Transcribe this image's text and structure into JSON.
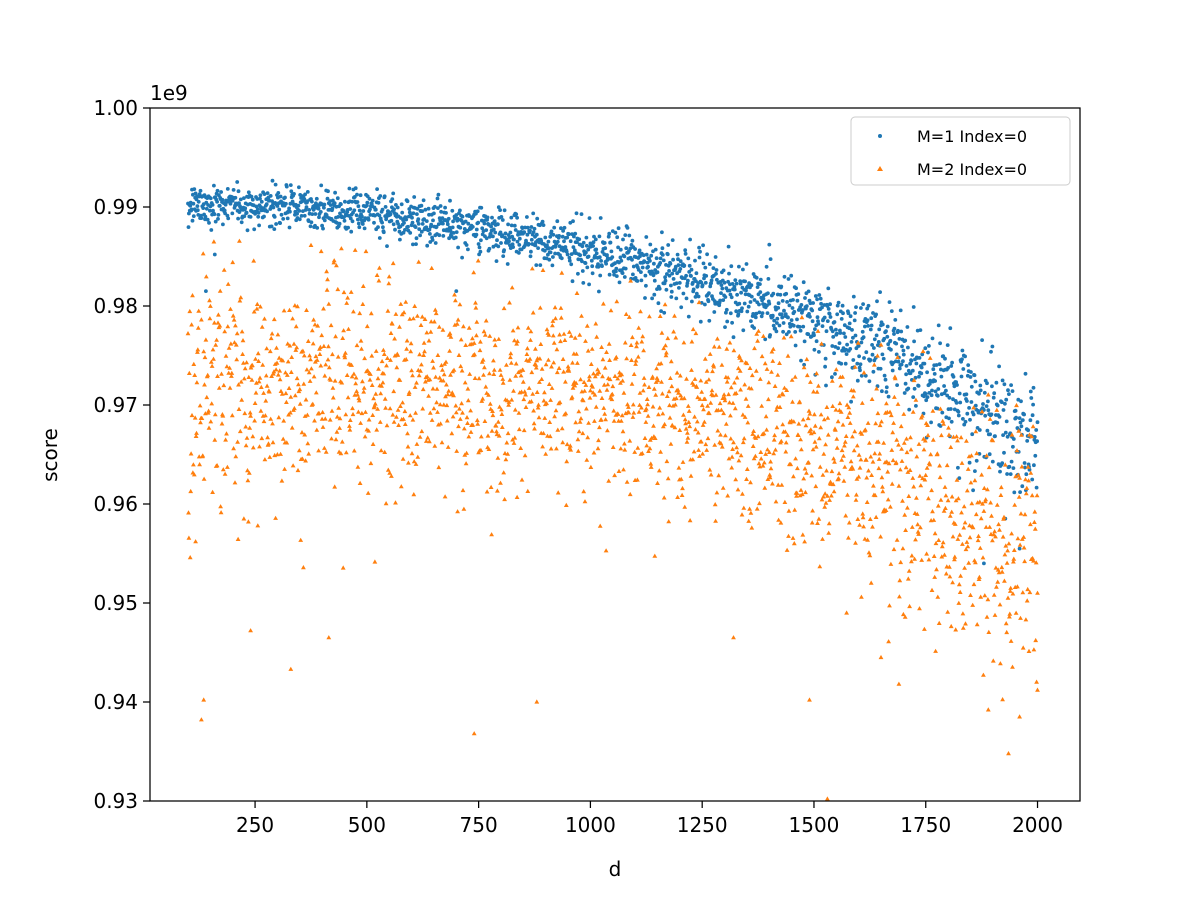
{
  "chart_data": {
    "type": "scatter",
    "title": "",
    "xlabel": "d",
    "ylabel": "score",
    "offset_text": "1e9",
    "xlim": [
      15,
      2095
    ],
    "ylim": [
      0.93,
      1.0
    ],
    "xticks": [
      250,
      500,
      750,
      1000,
      1250,
      1500,
      1750,
      2000
    ],
    "xtick_labels": [
      "250",
      "500",
      "750",
      "1000",
      "1250",
      "1500",
      "1750",
      "2000"
    ],
    "yticks": [
      0.93,
      0.94,
      0.95,
      0.96,
      0.97,
      0.98,
      0.99,
      1.0
    ],
    "ytick_labels": [
      "0.93",
      "0.94",
      "0.95",
      "0.96",
      "0.97",
      "0.98",
      "0.99",
      "1.00"
    ],
    "grid": false,
    "legend_position": "top-right",
    "series": [
      {
        "name": "M=1 Index=0",
        "marker": "circle",
        "color": "#1f77b4",
        "x_range": [
          100,
          2000
        ],
        "trend": [
          [
            100,
            0.99
          ],
          [
            300,
            0.9902
          ],
          [
            500,
            0.9893
          ],
          [
            750,
            0.9878
          ],
          [
            1000,
            0.9855
          ],
          [
            1250,
            0.9825
          ],
          [
            1500,
            0.9785
          ],
          [
            1750,
            0.9735
          ],
          [
            2000,
            0.9655
          ]
        ],
        "spread": [
          [
            100,
            0.0009
          ],
          [
            500,
            0.001
          ],
          [
            1000,
            0.0014
          ],
          [
            1500,
            0.0019
          ],
          [
            1750,
            0.0025
          ],
          [
            2000,
            0.0032
          ]
        ],
        "outliers": [
          [
            140,
            0.9815
          ],
          [
            160,
            0.9852
          ],
          [
            700,
            0.9815
          ],
          [
            1400,
            0.9862
          ],
          [
            1880,
            0.954
          ],
          [
            1960,
            0.9555
          ]
        ]
      },
      {
        "name": "M=2 Index=0",
        "marker": "triangle",
        "color": "#ff7f0e",
        "x_range": [
          100,
          2000
        ],
        "trend": [
          [
            100,
            0.971
          ],
          [
            300,
            0.9722
          ],
          [
            500,
            0.9725
          ],
          [
            750,
            0.9722
          ],
          [
            1000,
            0.9712
          ],
          [
            1250,
            0.9695
          ],
          [
            1500,
            0.9665
          ],
          [
            1750,
            0.961
          ],
          [
            2000,
            0.9555
          ]
        ],
        "spread": [
          [
            100,
            0.006
          ],
          [
            500,
            0.005
          ],
          [
            1000,
            0.0045
          ],
          [
            1500,
            0.005
          ],
          [
            1750,
            0.0055
          ],
          [
            2000,
            0.0062
          ]
        ],
        "outliers": [
          [
            130,
            0.9382
          ],
          [
            135,
            0.9402
          ],
          [
            240,
            0.9472
          ],
          [
            330,
            0.9433
          ],
          [
            415,
            0.9465
          ],
          [
            740,
            0.9368
          ],
          [
            880,
            0.94
          ],
          [
            1320,
            0.9465
          ],
          [
            1490,
            0.9402
          ],
          [
            1530,
            0.9302
          ],
          [
            1650,
            0.9445
          ],
          [
            1690,
            0.9418
          ],
          [
            1890,
            0.9392
          ],
          [
            1960,
            0.9385
          ],
          [
            2000,
            0.9412
          ]
        ]
      }
    ]
  }
}
